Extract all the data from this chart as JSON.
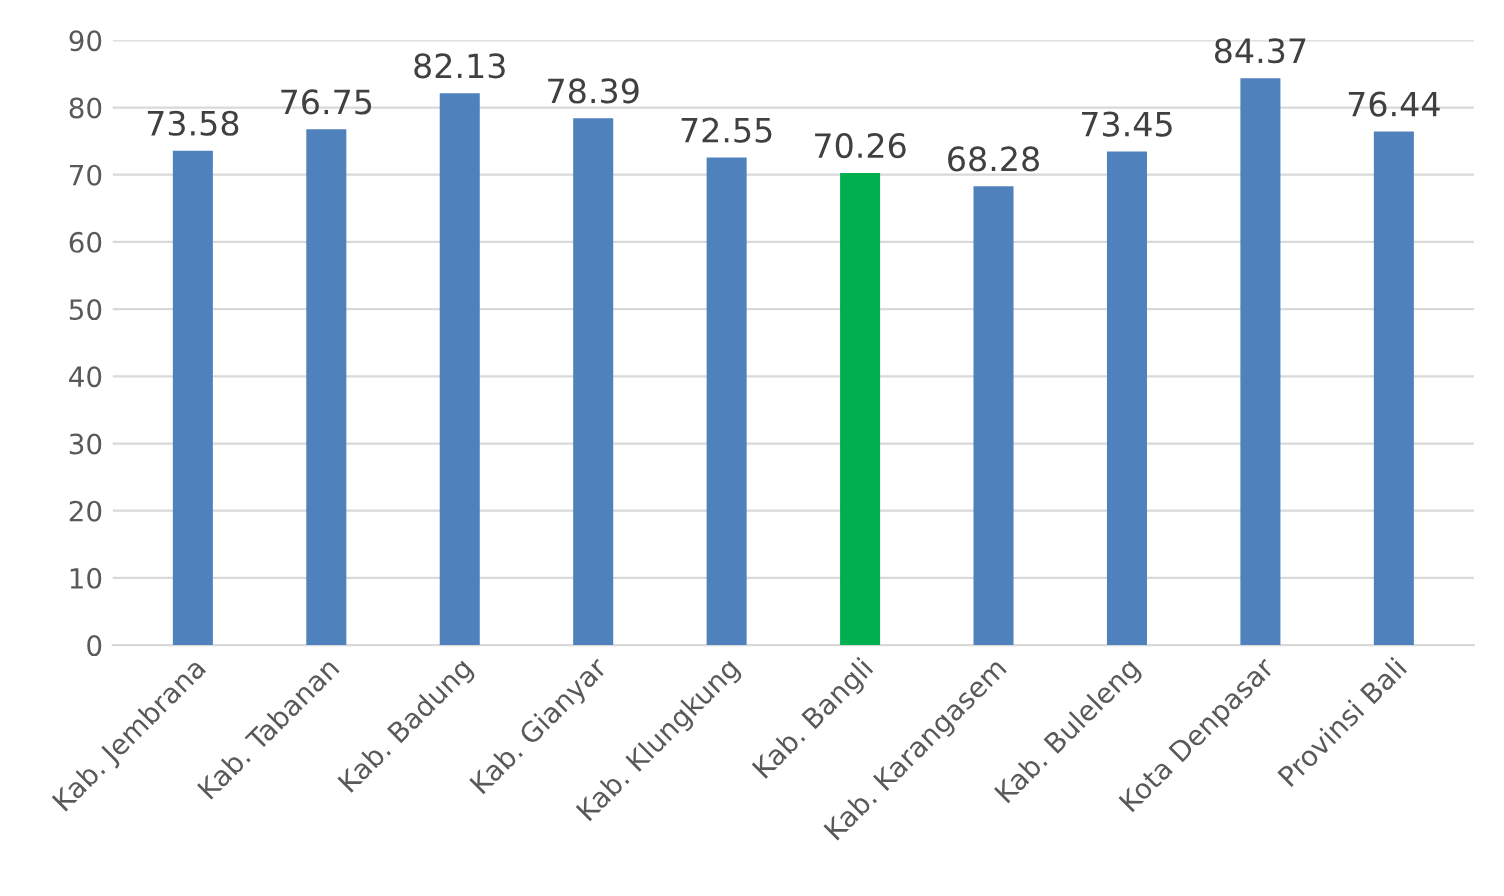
{
  "chart_data": {
    "type": "bar",
    "categories": [
      "Kab. Jembrana",
      "Kab. Tabanan",
      "Kab. Badung",
      "Kab. Gianyar",
      "Kab. Klungkung",
      "Kab. Bangli",
      "Kab. Karangasem",
      "Kab. Buleleng",
      "Kota Denpasar",
      "Provinsi Bali"
    ],
    "values": [
      73.58,
      76.75,
      82.13,
      78.39,
      72.55,
      70.26,
      68.28,
      73.45,
      84.37,
      76.44
    ],
    "colors": [
      "#4f81bd",
      "#4f81bd",
      "#4f81bd",
      "#4f81bd",
      "#4f81bd",
      "#00b050",
      "#4f81bd",
      "#4f81bd",
      "#4f81bd",
      "#4f81bd"
    ],
    "ylim": [
      0,
      90
    ],
    "yticks": [
      0,
      10,
      20,
      30,
      40,
      50,
      60,
      70,
      80,
      90
    ],
    "grid": "y",
    "data_labels": true
  }
}
